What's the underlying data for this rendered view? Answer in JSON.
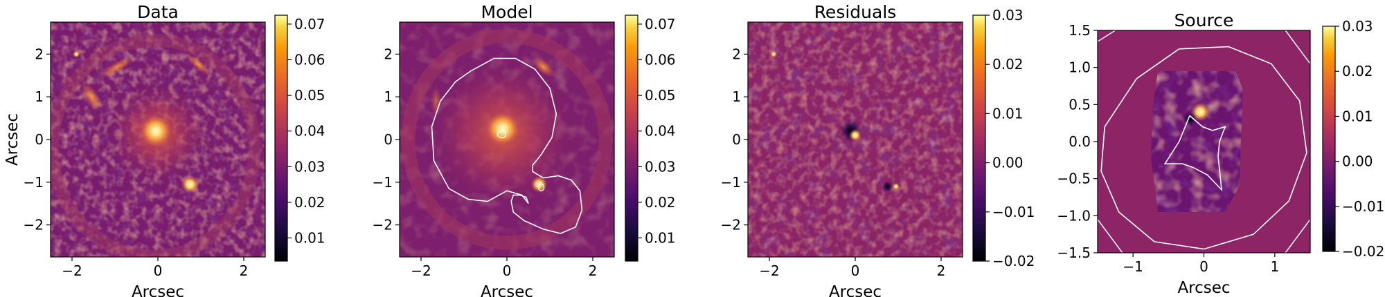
{
  "chart_data": [
    {
      "type": "heatmap",
      "title": "Data",
      "xlabel": "Arcsec",
      "ylabel": "Arcsec",
      "xlim": [
        -2.5,
        2.5
      ],
      "ylim": [
        -2.75,
        2.75
      ],
      "xticks": [
        -2,
        0,
        2
      ],
      "yticks": [
        -2,
        -1,
        0,
        1,
        2
      ],
      "colormap": "inferno",
      "colorbar": {
        "range": [
          0.0035,
          0.0725
        ],
        "ticks": [
          0.01,
          0.02,
          0.03,
          0.04,
          0.05,
          0.06,
          0.07
        ],
        "tick_labels": [
          "0.01",
          "0.02",
          "0.03",
          "0.04",
          "0.05",
          "0.06",
          "0.07"
        ]
      },
      "features": {
        "central_lens": [
          0,
          0.2
        ],
        "bright_spots": [
          [
            0.75,
            -1.05
          ],
          [
            -1.9,
            2.0
          ]
        ],
        "ring_radius": 2.4
      }
    },
    {
      "type": "heatmap",
      "title": "Model",
      "xlabel": "Arcsec",
      "ylabel": "",
      "xlim": [
        -2.5,
        2.5
      ],
      "ylim": [
        -2.75,
        2.75
      ],
      "xticks": [
        -2,
        0,
        2
      ],
      "yticks": [
        -2,
        -1,
        0,
        1,
        2
      ],
      "colormap": "inferno",
      "colorbar": {
        "range": [
          0.0035,
          0.0725
        ],
        "ticks": [
          0.01,
          0.02,
          0.03,
          0.04,
          0.05,
          0.06,
          0.07
        ],
        "tick_labels": [
          "0.01",
          "0.02",
          "0.03",
          "0.04",
          "0.05",
          "0.06",
          "0.07"
        ]
      },
      "critical_curve": {
        "color": "#ffffff",
        "x": [
          -0.85,
          -0.3,
          0.2,
          0.65,
          1.0,
          1.15,
          1.05,
          0.8,
          0.6,
          0.6,
          0.85,
          1.2,
          1.5,
          1.7,
          1.75,
          1.6,
          1.25,
          0.85,
          0.4,
          0.15,
          0.1,
          0.15,
          0.3,
          0.45,
          0.5,
          0.35,
          0.0,
          -0.45,
          -0.9,
          -1.35,
          -1.7,
          -1.75,
          -1.55,
          -1.2,
          -0.85
        ],
        "y": [
          1.6,
          1.9,
          1.9,
          1.65,
          1.2,
          0.6,
          0.05,
          -0.35,
          -0.6,
          -0.75,
          -0.9,
          -0.85,
          -0.95,
          -1.2,
          -1.65,
          -2.05,
          -2.2,
          -2.1,
          -1.9,
          -1.7,
          -1.45,
          -1.3,
          -1.3,
          -1.35,
          -1.5,
          -1.3,
          -1.2,
          -1.45,
          -1.4,
          -1.15,
          -0.5,
          0.3,
          0.9,
          1.35,
          1.6
        ]
      }
    },
    {
      "type": "heatmap",
      "title": "Residuals",
      "xlabel": "Arcsec",
      "ylabel": "",
      "xlim": [
        -2.5,
        2.5
      ],
      "ylim": [
        -2.75,
        2.75
      ],
      "xticks": [
        -2,
        0,
        2
      ],
      "yticks": [
        -2,
        -1,
        0,
        1,
        2
      ],
      "colormap": "inferno",
      "colorbar": {
        "range": [
          -0.02,
          0.03
        ],
        "ticks": [
          -0.02,
          -0.01,
          0.0,
          0.01,
          0.02,
          0.03
        ],
        "tick_labels": [
          "−0.02",
          "−0.01",
          "0.00",
          "0.01",
          "0.02",
          "0.03"
        ]
      }
    },
    {
      "type": "heatmap",
      "title": "Source",
      "xlabel": "Arcsec",
      "ylabel": "",
      "xlim": [
        -1.5,
        1.5
      ],
      "ylim": [
        -1.5,
        1.5
      ],
      "xticks": [
        -1,
        0,
        1
      ],
      "yticks": [
        -1.5,
        -1.0,
        -0.5,
        0.0,
        0.5,
        1.0,
        1.5
      ],
      "xtick_labels": [
        "−1",
        "0",
        "1"
      ],
      "ytick_labels": [
        "−1.5",
        "−1.0",
        "−0.5",
        "0.0",
        "0.5",
        "1.0",
        "1.5"
      ],
      "colormap": "inferno",
      "colorbar": {
        "range": [
          -0.02,
          0.03
        ],
        "ticks": [
          -0.02,
          -0.01,
          0.0,
          0.01,
          0.02,
          0.03
        ],
        "tick_labels": [
          "−0.02",
          "−0.01",
          "0.00",
          "0.01",
          "0.02",
          "0.03"
        ]
      },
      "caustic": {
        "color": "#ffffff",
        "x": [
          -0.2,
          -0.02,
          0.12,
          0.3,
          0.22,
          0.2,
          0.25,
          0.05,
          -0.15,
          -0.3,
          -0.55,
          -0.35,
          -0.2
        ],
        "y": [
          0.35,
          0.2,
          0.15,
          0.2,
          0.0,
          -0.2,
          -0.65,
          -0.45,
          -0.35,
          -0.3,
          -0.3,
          0.0,
          0.35
        ]
      },
      "outer_caustic": {
        "color": "#ffffff",
        "x": [
          -0.35,
          0.35,
          0.95,
          1.35,
          1.45,
          1.2,
          0.7,
          0.0,
          -0.7,
          -1.2,
          -1.45,
          -1.4,
          -0.95,
          -0.35
        ],
        "y": [
          1.25,
          1.28,
          1.05,
          0.55,
          -0.15,
          -0.8,
          -1.25,
          -1.45,
          -1.35,
          -0.95,
          -0.4,
          0.2,
          0.85,
          1.25
        ]
      }
    }
  ]
}
